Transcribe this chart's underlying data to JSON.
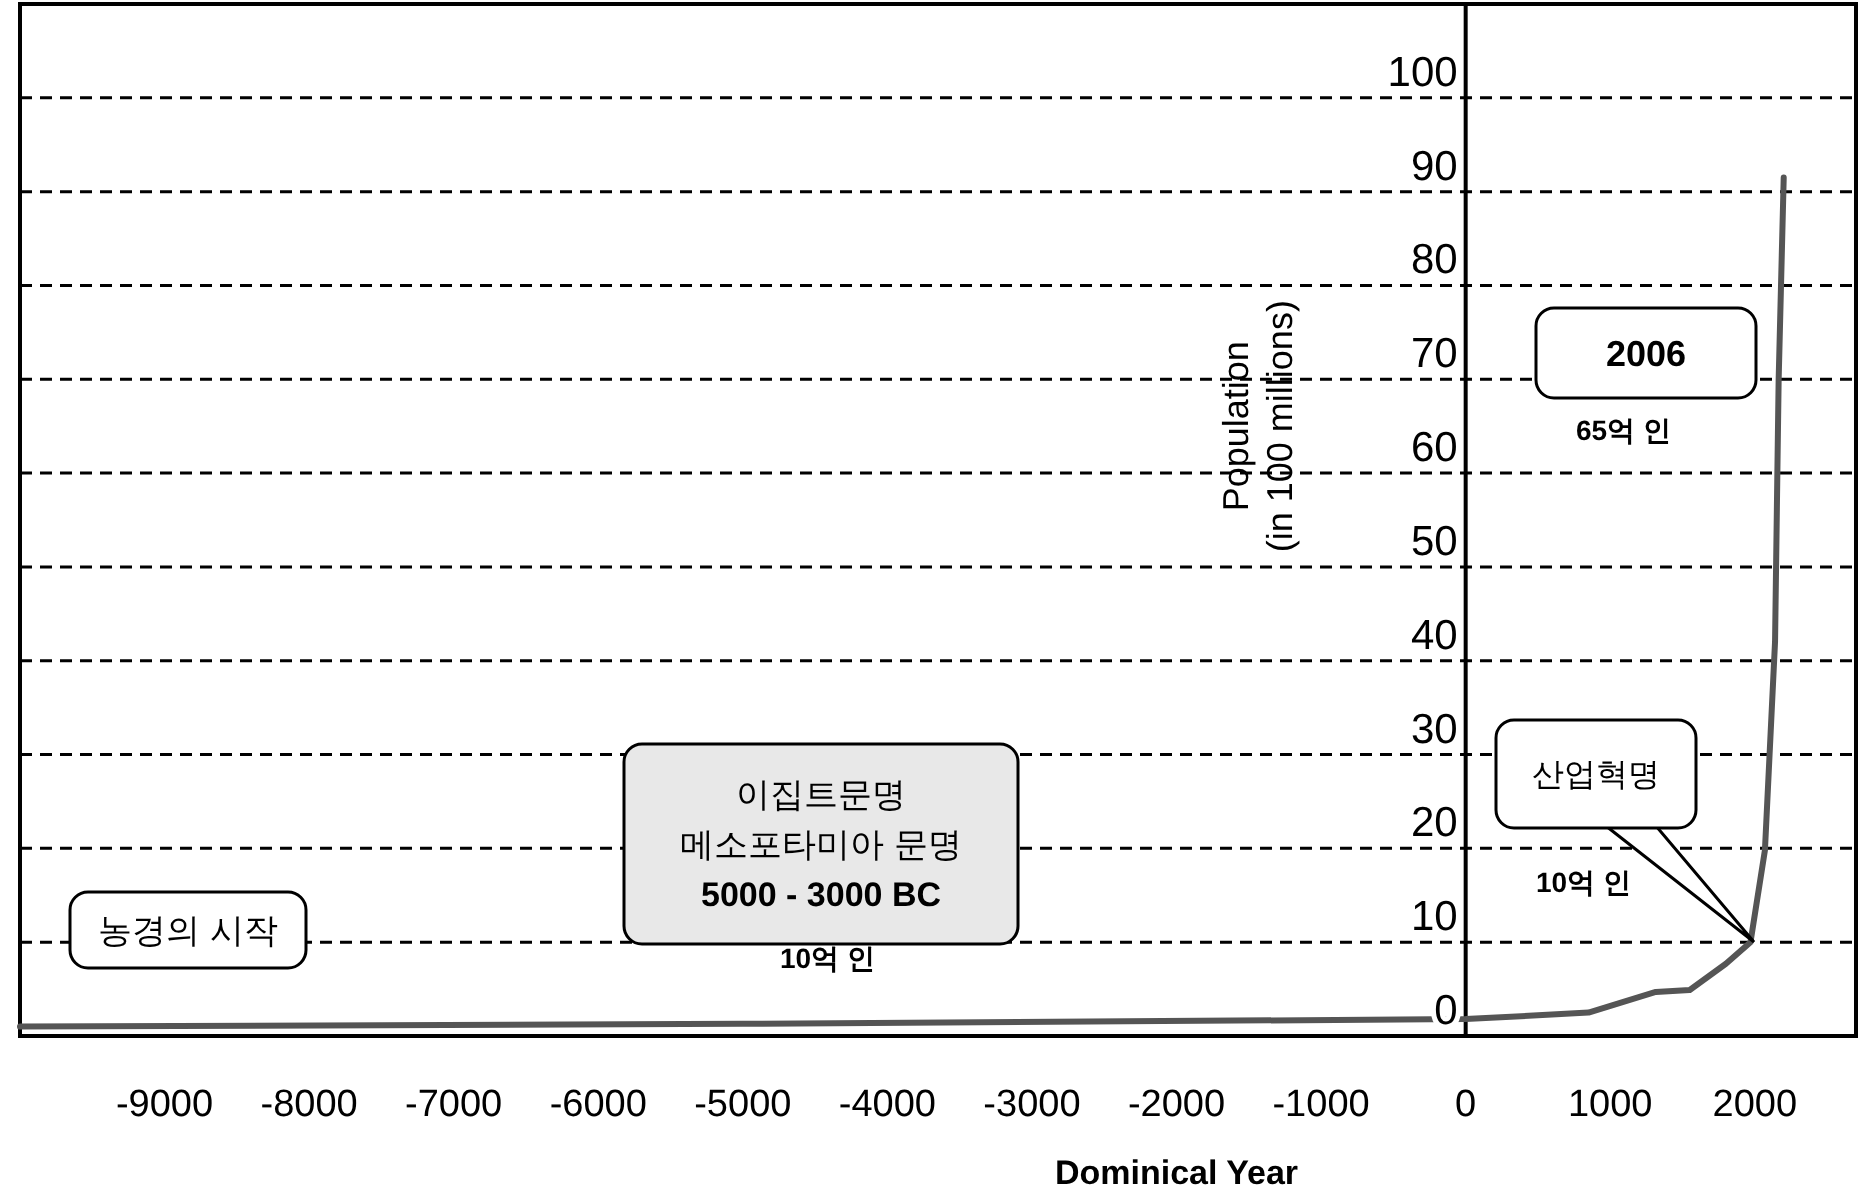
{
  "chart_data": {
    "type": "line",
    "xlabel": "Dominical Year",
    "ylabel": "Population\n(in 100 millions)",
    "x": [
      -10000,
      -5000,
      0,
      850,
      1315,
      1550,
      1800,
      1970,
      2070,
      2140,
      2165,
      2200
    ],
    "series": [
      {
        "color": "#555555",
        "values": [
          1,
          1.3,
          1.8,
          2.5,
          4.7,
          4.9,
          7.7,
          10,
          19.8,
          42,
          70,
          91.5
        ]
      }
    ],
    "xlim": [
      -10000,
      2700
    ],
    "ylim": [
      0,
      110
    ],
    "xticks": [
      -9000,
      -8000,
      -7000,
      -6000,
      -5000,
      -4000,
      -3000,
      -2000,
      -1000,
      0,
      1000,
      2000
    ],
    "yticks": [
      0,
      10,
      20,
      30,
      40,
      50,
      60,
      70,
      80,
      90,
      100
    ],
    "grid": "y",
    "line_style": "solid",
    "marker": "none",
    "annotations": [
      {
        "text": "농경의 시작"
      },
      {
        "text": "이집트문명\n메소포타미아 문명\n5000 - 3000 BC"
      },
      {
        "text": "10억 인"
      },
      {
        "text": "2006"
      },
      {
        "text": "65억 인"
      },
      {
        "text": "산업혁명"
      },
      {
        "text": "10억 인"
      }
    ]
  }
}
